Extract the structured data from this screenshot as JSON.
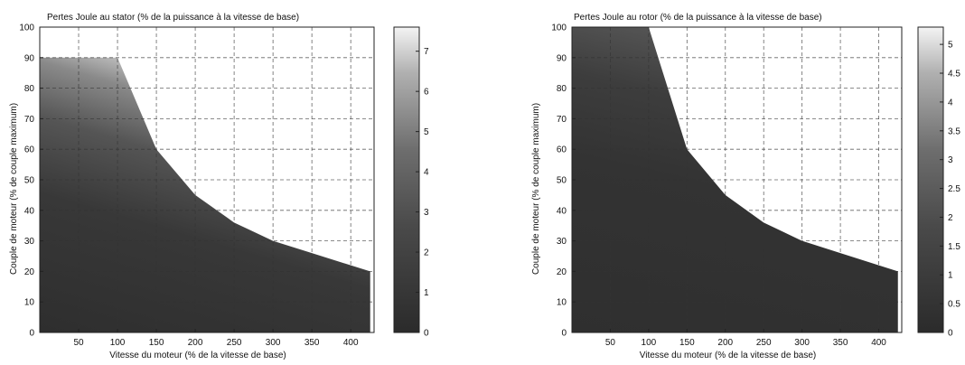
{
  "chart_data": [
    {
      "type": "heatmap",
      "title": "Pertes Joule au stator (% de la puissance à la vitesse de base)",
      "xlabel": "Vitesse du moteur (% de la vitesse de base)",
      "ylabel": "Couple de moteur (% de couple maximum)",
      "xlim": [
        0,
        430
      ],
      "ylim": [
        0,
        100
      ],
      "xticks": [
        50,
        100,
        150,
        200,
        250,
        300,
        350,
        400
      ],
      "yticks": [
        0,
        10,
        20,
        30,
        40,
        50,
        60,
        70,
        80,
        90,
        100
      ],
      "colorbar": {
        "min": 0,
        "max": 7.6,
        "ticks": [
          "0",
          "1",
          "2",
          "3",
          "4",
          "5",
          "6",
          "7"
        ]
      },
      "boundary_points": [
        [
          0,
          90
        ],
        [
          100,
          90
        ],
        [
          150,
          60
        ],
        [
          200,
          45
        ],
        [
          250,
          36
        ],
        [
          300,
          30
        ],
        [
          350,
          26
        ],
        [
          400,
          22
        ],
        [
          425,
          20
        ]
      ],
      "grid": true
    },
    {
      "type": "heatmap",
      "title": "Pertes Joule au rotor (% de la puissance à la vitesse de base)",
      "xlabel": "Vitesse du moteur (% de la vitesse de base)",
      "ylabel": "Couple de moteur (% de couple maximum)",
      "xlim": [
        0,
        430
      ],
      "ylim": [
        0,
        100
      ],
      "xticks": [
        50,
        100,
        150,
        200,
        250,
        300,
        350,
        400
      ],
      "yticks": [
        0,
        10,
        20,
        30,
        40,
        50,
        60,
        70,
        80,
        90,
        100
      ],
      "colorbar": {
        "min": 0,
        "max": 5.3,
        "ticks": [
          "0",
          "0.5",
          "1",
          "1.5",
          "2",
          "2.5",
          "3",
          "3.5",
          "4",
          "4.5",
          "5"
        ]
      },
      "boundary_points": [
        [
          0,
          100
        ],
        [
          100,
          100
        ],
        [
          150,
          60
        ],
        [
          200,
          45
        ],
        [
          250,
          36
        ],
        [
          300,
          30
        ],
        [
          350,
          26
        ],
        [
          400,
          22
        ],
        [
          425,
          20
        ]
      ],
      "grid": true
    }
  ]
}
